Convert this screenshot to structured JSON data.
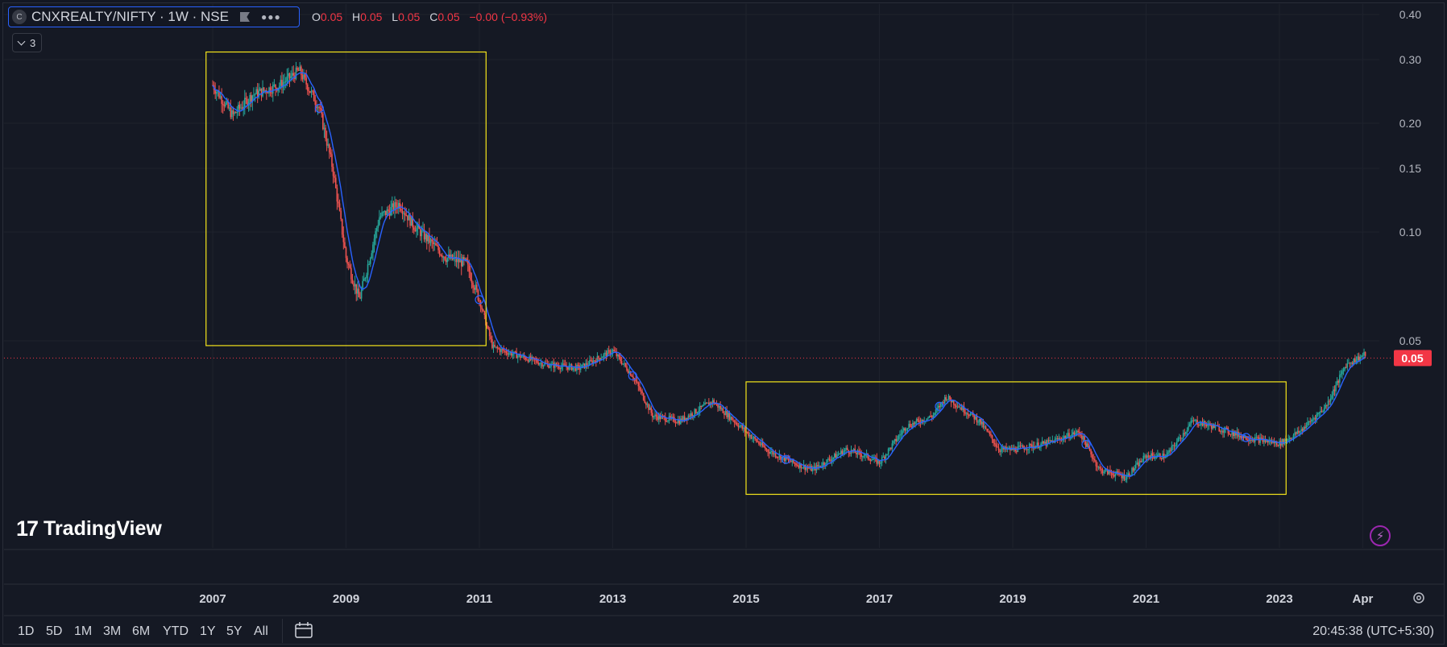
{
  "header": {
    "symbol_logo": "C",
    "title": "CNXREALTY/NIFTY · 1W · NSE",
    "ohlc": [
      {
        "k": "O",
        "v": "0.05"
      },
      {
        "k": "H",
        "v": "0.05"
      },
      {
        "k": "L",
        "v": "0.05"
      },
      {
        "k": "C",
        "v": "0.05"
      }
    ],
    "change": "−0.00 (−0.93%)",
    "indicators_count": "3"
  },
  "brand": {
    "mark": "17",
    "text": "TradingView"
  },
  "timeframes": [
    "1D",
    "5D",
    "1M",
    "3M",
    "6M",
    "YTD",
    "1Y",
    "5Y",
    "All"
  ],
  "clock": "20:45:38 (UTC+5:30)",
  "colors": {
    "up": "#26a69a",
    "down": "#ef5350",
    "ma": "#2962ff",
    "box": "#f5e51b",
    "price_tag": "#f23645"
  },
  "chart_data": {
    "type": "line",
    "y_scale": "log",
    "y_ticks": [
      "0.40",
      "0.30",
      "0.20",
      "0.15",
      "0.10",
      "0.05"
    ],
    "x_ticks": [
      "2007",
      "2009",
      "2011",
      "2013",
      "2015",
      "2017",
      "2019",
      "2021",
      "2023",
      "Apr"
    ],
    "last_price_label": "0.05",
    "series": [
      {
        "x": [
          2007.0,
          2007.3,
          2007.6,
          2008.0,
          2008.3,
          2008.6,
          2008.8,
          2009.0,
          2009.2,
          2009.5,
          2009.8,
          2010.0,
          2010.5,
          2010.8,
          2011.0,
          2011.2,
          2011.5,
          2012.0,
          2012.5,
          2013.0,
          2013.3,
          2013.6,
          2014.0,
          2014.5,
          2015.0,
          2015.3,
          2015.7,
          2016.0,
          2016.5,
          2016.8,
          2017.0,
          2017.4,
          2017.8,
          2018.0,
          2018.5,
          2018.8,
          2019.0,
          2019.5,
          2020.0,
          2020.3,
          2020.7,
          2021.0,
          2021.3,
          2021.7,
          2022.0,
          2022.5,
          2023.0,
          2023.3,
          2023.7,
          2024.0,
          2024.3
        ],
        "values": [
          0.255,
          0.21,
          0.24,
          0.255,
          0.28,
          0.22,
          0.15,
          0.085,
          0.065,
          0.11,
          0.12,
          0.105,
          0.085,
          0.082,
          0.065,
          0.048,
          0.046,
          0.043,
          0.042,
          0.047,
          0.04,
          0.031,
          0.03,
          0.034,
          0.028,
          0.025,
          0.023,
          0.022,
          0.025,
          0.024,
          0.023,
          0.029,
          0.031,
          0.035,
          0.03,
          0.025,
          0.025,
          0.026,
          0.028,
          0.022,
          0.021,
          0.024,
          0.024,
          0.03,
          0.029,
          0.027,
          0.026,
          0.028,
          0.033,
          0.043,
          0.046
        ]
      }
    ]
  }
}
